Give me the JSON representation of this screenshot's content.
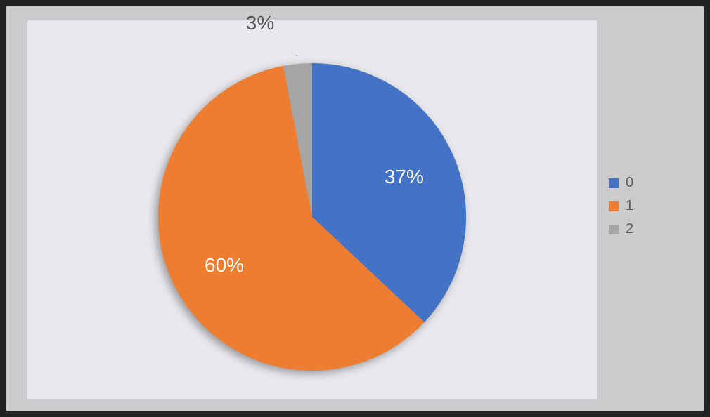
{
  "chart": {
    "type": "pie",
    "background_outer": "#222222",
    "background_frame": "#cbcbcd",
    "background_plot": "#e9e9ed",
    "label_color": "#ffffff",
    "label_fontsize": 28,
    "legend_fontsize": 20,
    "legend_text_color": "#5a5a5a",
    "start_angle_deg": 0,
    "slices": [
      {
        "id": "s0",
        "value": 37,
        "label": "37%",
        "color": "#4472c4",
        "legend": "0"
      },
      {
        "id": "s1",
        "value": 60,
        "label": "60%",
        "color": "#ed7d31",
        "legend": "1"
      },
      {
        "id": "s2",
        "value": 3,
        "label": "3%",
        "color": "#a5a5a5",
        "legend": "2"
      }
    ],
    "leader": {
      "slice_id": "s2",
      "color": "#a6a6a6",
      "label_color": "#555555"
    }
  }
}
